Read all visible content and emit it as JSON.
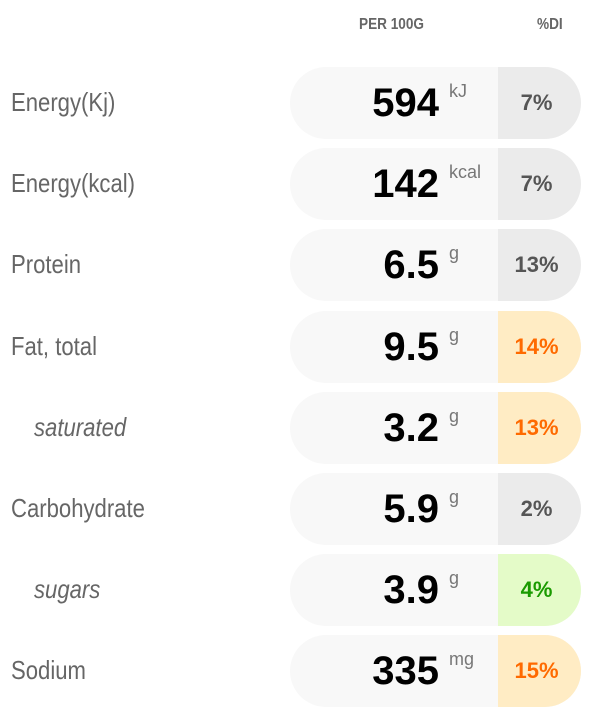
{
  "header": {
    "per": "PER 100G",
    "di": "%DI"
  },
  "colors": {
    "neutral": "#ebebeb",
    "warn": "#ffecc4",
    "warn_text": "#ff6a00",
    "good": "#e4fbc8",
    "good_text": "#1a9a00"
  },
  "rows": [
    {
      "label": "Energy(Kj)",
      "value": "594",
      "unit": "kJ",
      "di": "7%",
      "status": "neutral",
      "sub": false
    },
    {
      "label": "Energy(kcal)",
      "value": "142",
      "unit": "kcal",
      "di": "7%",
      "status": "neutral",
      "sub": false
    },
    {
      "label": "Protein",
      "value": "6.5",
      "unit": "g",
      "di": "13%",
      "status": "neutral",
      "sub": false
    },
    {
      "label": "Fat, total",
      "value": "9.5",
      "unit": "g",
      "di": "14%",
      "status": "warn",
      "sub": false
    },
    {
      "label": "saturated",
      "value": "3.2",
      "unit": "g",
      "di": "13%",
      "status": "warn",
      "sub": true
    },
    {
      "label": "Carbohydrate",
      "value": "5.9",
      "unit": "g",
      "di": "2%",
      "status": "neutral",
      "sub": false
    },
    {
      "label": "sugars",
      "value": "3.9",
      "unit": "g",
      "di": "4%",
      "status": "good",
      "sub": true
    },
    {
      "label": "Sodium",
      "value": "335",
      "unit": "mg",
      "di": "15%",
      "status": "warn",
      "sub": false
    }
  ]
}
